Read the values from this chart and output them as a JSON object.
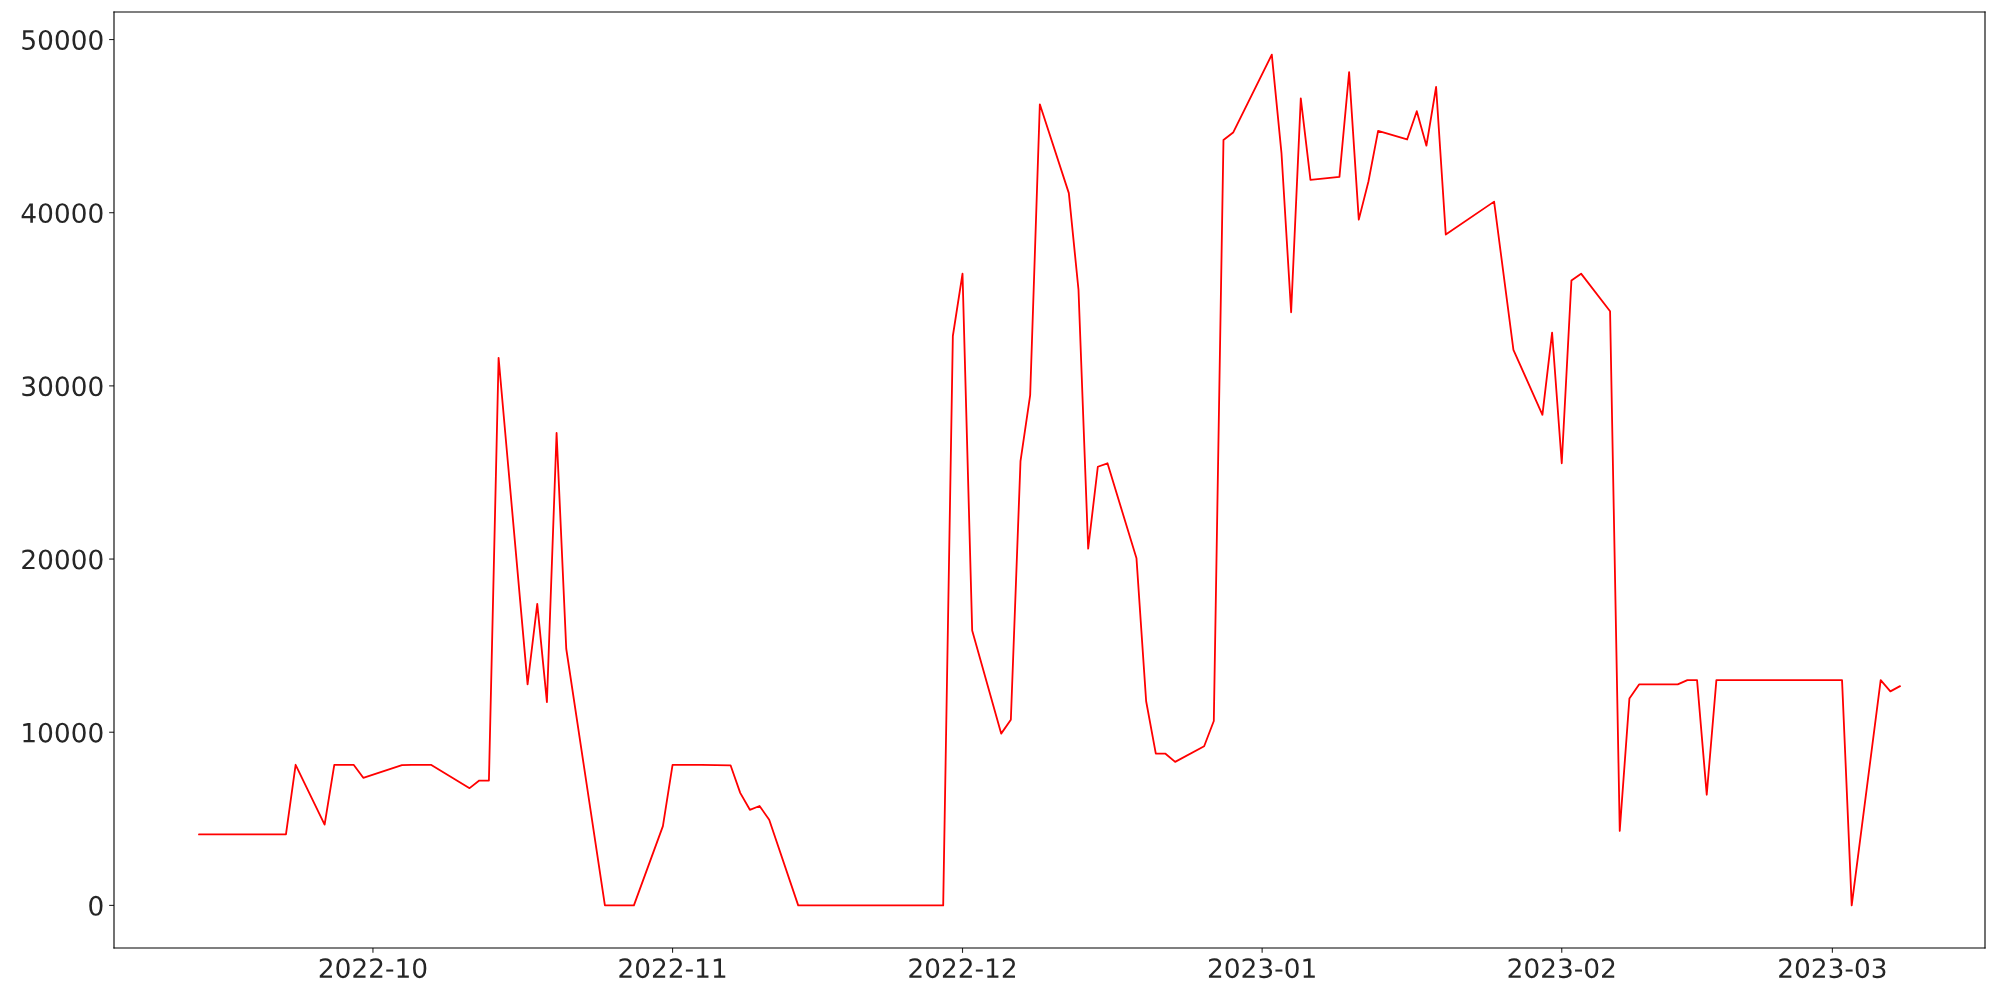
{
  "chart_data": {
    "type": "line",
    "x": [
      "2022-09-13",
      "2022-09-22",
      "2022-09-23",
      "2022-09-26",
      "2022-09-27",
      "2022-09-29",
      "2022-09-30",
      "2022-10-04",
      "2022-10-05",
      "2022-10-07",
      "2022-10-11",
      "2022-10-12",
      "2022-10-13",
      "2022-10-14",
      "2022-10-17",
      "2022-10-18",
      "2022-10-19",
      "2022-10-20",
      "2022-10-21",
      "2022-10-25",
      "2022-10-28",
      "2022-10-31",
      "2022-11-01",
      "2022-11-04",
      "2022-11-07",
      "2022-11-08",
      "2022-11-09",
      "2022-11-10",
      "2022-11-11",
      "2022-11-14",
      "2022-11-29",
      "2022-11-30",
      "2022-12-01",
      "2022-12-02",
      "2022-12-05",
      "2022-12-06",
      "2022-12-07",
      "2022-12-08",
      "2022-12-09",
      "2022-12-12",
      "2022-12-13",
      "2022-12-14",
      "2022-12-15",
      "2022-12-16",
      "2022-12-19",
      "2022-12-20",
      "2022-12-21",
      "2022-12-22",
      "2022-12-23",
      "2022-12-26",
      "2022-12-27",
      "2022-12-28",
      "2022-12-29",
      "2023-01-02",
      "2023-01-03",
      "2023-01-04",
      "2023-01-05",
      "2023-01-06",
      "2023-01-09",
      "2023-01-10",
      "2023-01-11",
      "2023-01-12",
      "2023-01-13",
      "2023-01-16",
      "2023-01-17",
      "2023-01-18",
      "2023-01-19",
      "2023-01-20",
      "2023-01-25",
      "2023-01-27",
      "2023-01-30",
      "2023-01-31",
      "2023-02-01",
      "2023-02-02",
      "2023-02-03",
      "2023-02-06",
      "2023-02-07",
      "2023-02-08",
      "2023-02-09",
      "2023-02-13",
      "2023-02-14",
      "2023-02-15",
      "2023-02-16",
      "2023-02-17",
      "2023-03-02",
      "2023-03-03",
      "2023-03-06",
      "2023-03-07",
      "2023-03-08"
    ],
    "series": [
      {
        "color": "#ff0000",
        "values": [
          4100,
          4100,
          8120,
          4670,
          8120,
          8120,
          7370,
          8100,
          8120,
          8120,
          6770,
          7210,
          7210,
          31620,
          12760,
          17410,
          11740,
          27280,
          14820,
          0,
          0,
          4580,
          8120,
          8120,
          8090,
          6500,
          5520,
          5740,
          4950,
          0,
          0,
          32880,
          36480,
          15880,
          9920,
          10720,
          25660,
          29460,
          46260,
          41130,
          35550,
          20600,
          25330,
          25530,
          20040,
          11790,
          8760,
          8760,
          8290,
          9190,
          10650,
          44200,
          44630,
          49130,
          43460,
          34250,
          46600,
          41900,
          42070,
          48120,
          39600,
          41800,
          44730,
          44230,
          45860,
          43870,
          47260,
          38740,
          40640,
          32080,
          28330,
          33080,
          25530,
          36080,
          36480,
          34310,
          4300,
          11950,
          12760,
          12760,
          13010,
          13010,
          6390,
          13010,
          13010,
          0,
          13010,
          12360,
          12660
        ]
      }
    ],
    "xlim": [
      "2022-09-04T05:00",
      "2023-03-16T19:00"
    ],
    "xticks": [
      {
        "value": "2022-10-01",
        "label": "2022-10"
      },
      {
        "value": "2022-11-01",
        "label": "2022-11"
      },
      {
        "value": "2022-12-01",
        "label": "2022-12"
      },
      {
        "value": "2023-01-01",
        "label": "2023-01"
      },
      {
        "value": "2023-02-01",
        "label": "2023-02"
      },
      {
        "value": "2023-03-01",
        "label": "2023-03"
      }
    ],
    "ylim": [
      -2460,
      51590
    ],
    "yticks": [
      0,
      10000,
      20000,
      30000,
      40000,
      50000
    ],
    "grid": false,
    "marker": "none",
    "line_style": "solid"
  }
}
